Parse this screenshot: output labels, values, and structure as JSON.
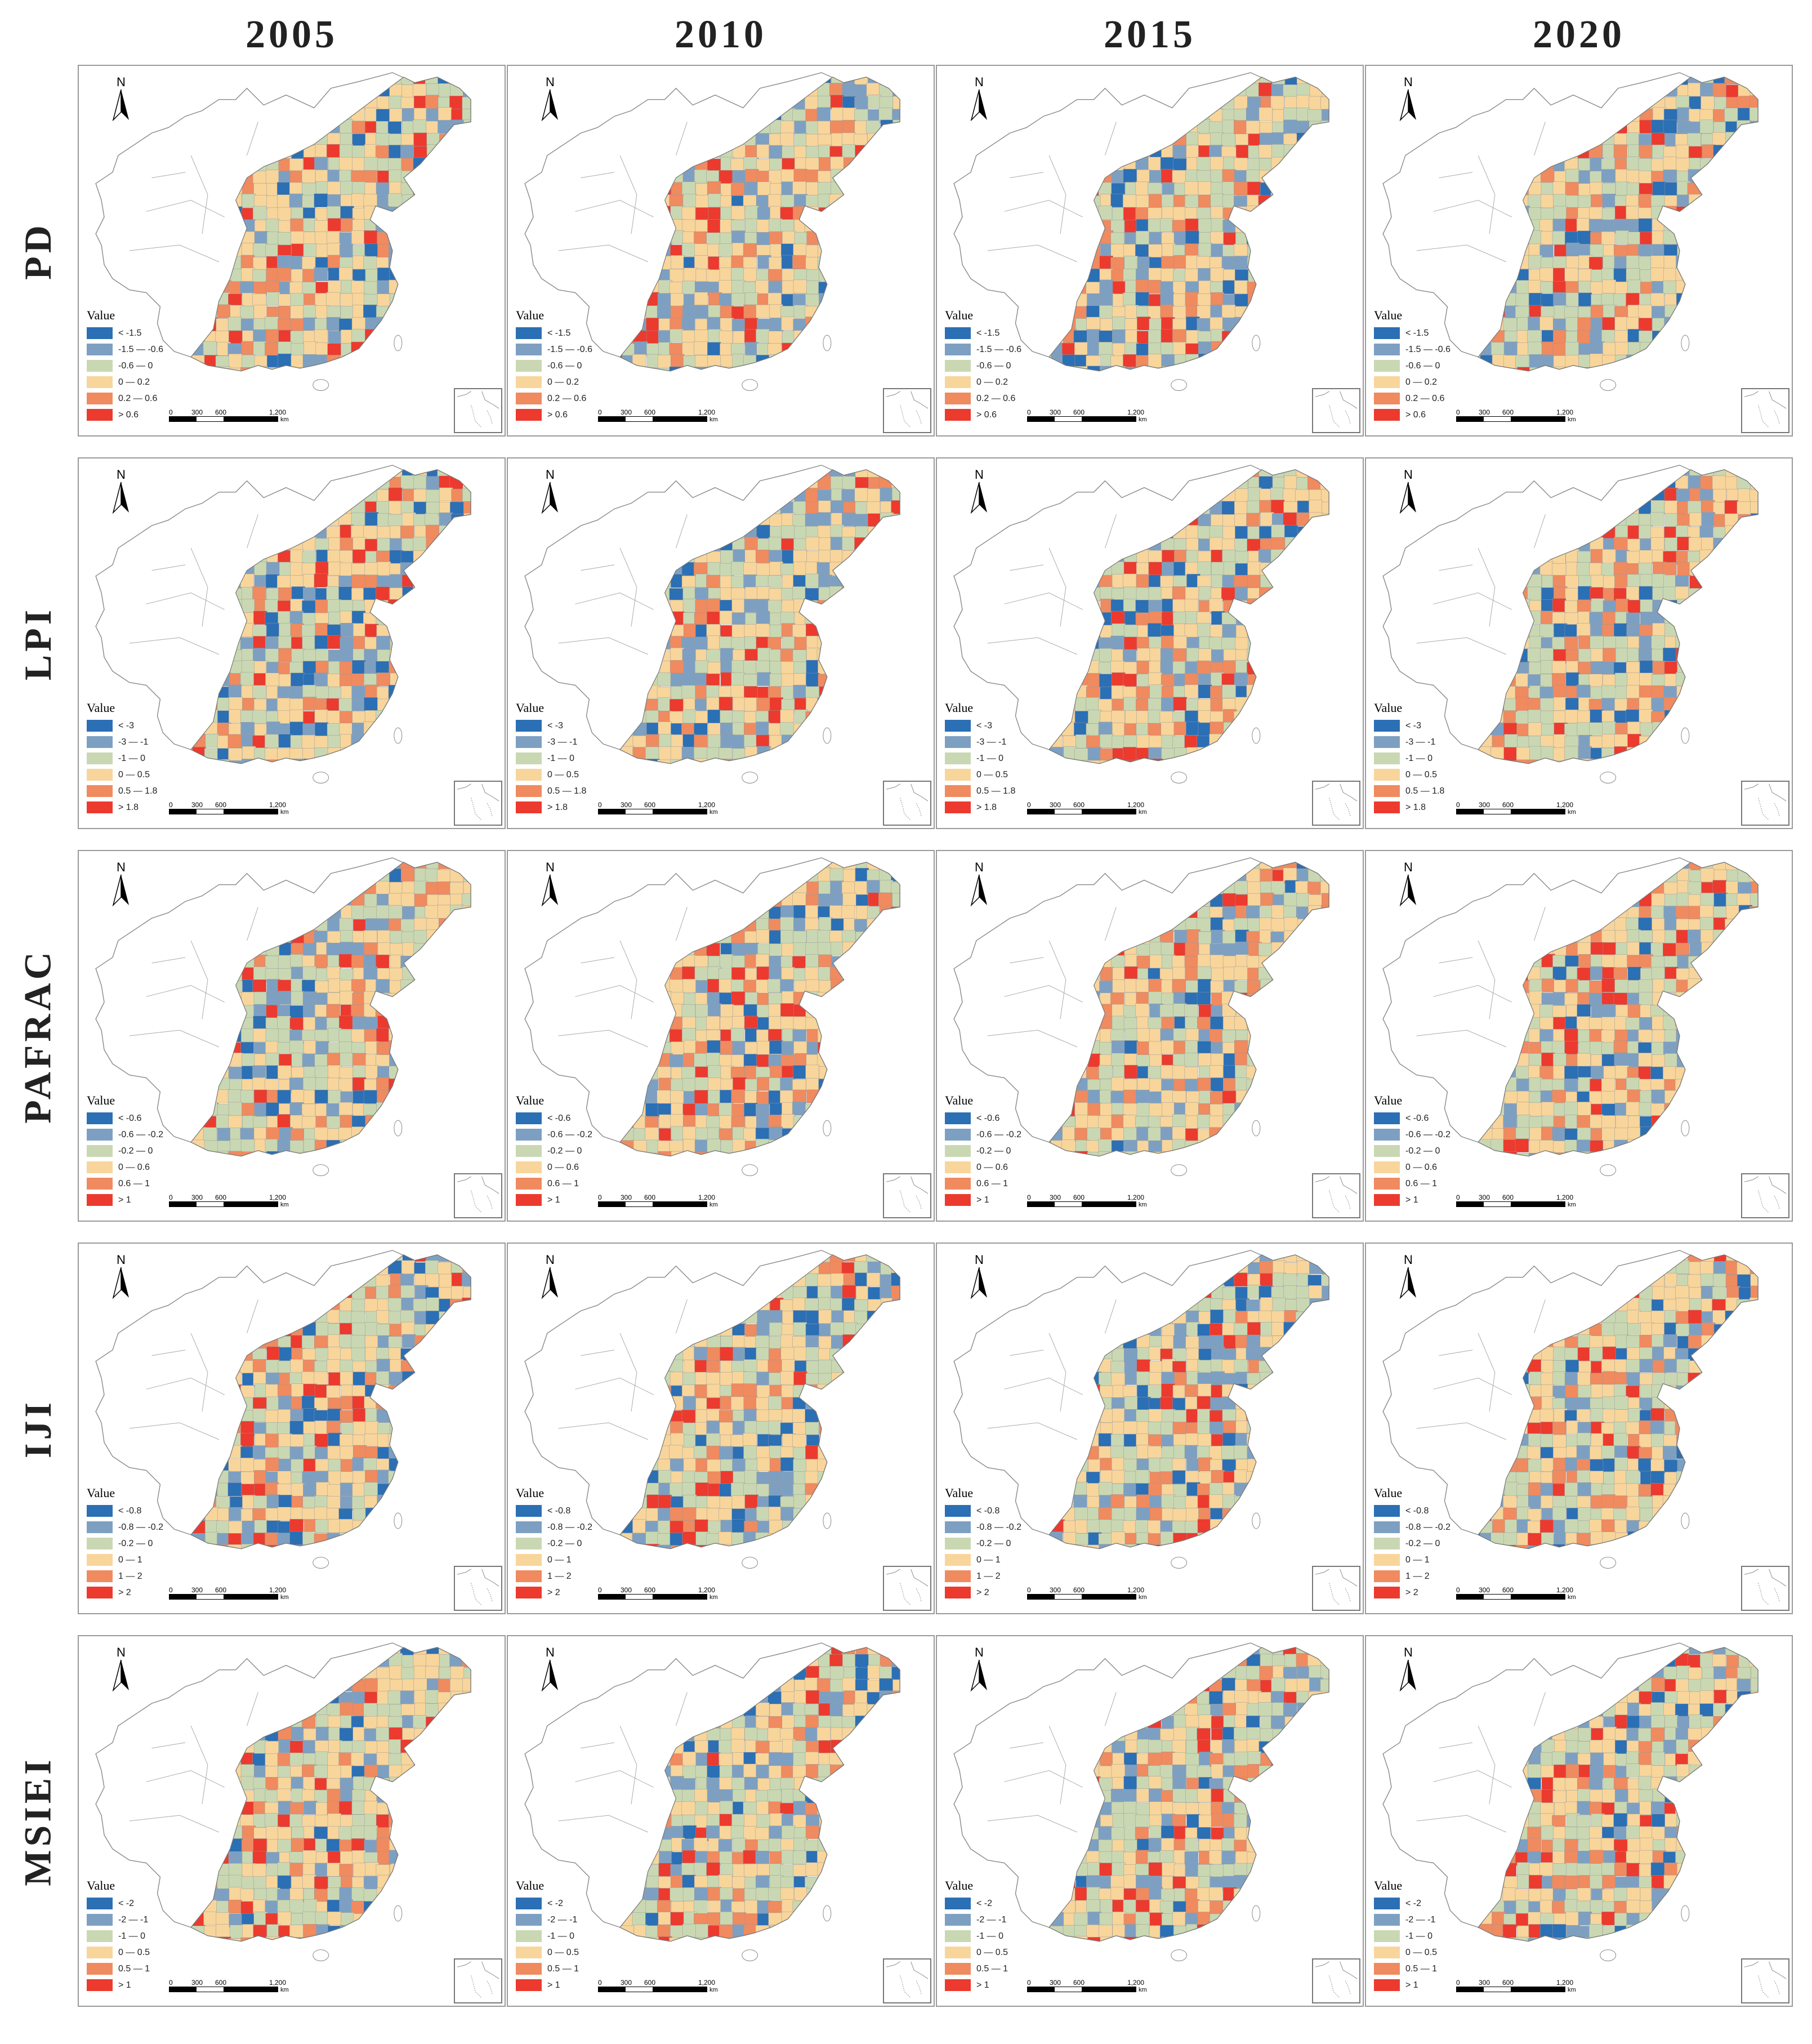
{
  "years": [
    "2005",
    "2010",
    "2015",
    "2020"
  ],
  "palette": [
    "#2b6fb5",
    "#7da0c2",
    "#c9d8b2",
    "#f8d59b",
    "#f08a5f",
    "#ec3a2e"
  ],
  "map_common": {
    "north_label": "N",
    "legend_title": "Value",
    "scale_ticks": [
      "0",
      "300",
      "600",
      "1,200"
    ],
    "scale_unit": "km"
  },
  "rows": [
    {
      "label": "PD",
      "legend": [
        "< -1.5",
        "-1.5 — -0.6",
        "-0.6 — 0",
        "0 — 0.2",
        "0.2 — 0.6",
        "> 0.6"
      ]
    },
    {
      "label": "LPI",
      "legend": [
        "< -3",
        "-3 — -1",
        "-1 — 0",
        "0 — 0.5",
        "0.5 — 1.8",
        "> 1.8"
      ]
    },
    {
      "label": "PAFRAC",
      "legend": [
        "< -0.6",
        "-0.6 — -0.2",
        "-0.2 — 0",
        "0 — 0.6",
        "0.6 — 1",
        "> 1"
      ]
    },
    {
      "label": "IJI",
      "legend": [
        "< -0.8",
        "-0.8 — -0.2",
        "-0.2 — 0",
        "0 — 1",
        "1 — 2",
        "> 2"
      ]
    },
    {
      "label": "MSIEI",
      "legend": [
        "< -2",
        "-2 — -1",
        "-1 — 0",
        "0 — 0.5",
        "0.5 — 1",
        "> 1"
      ]
    }
  ]
}
